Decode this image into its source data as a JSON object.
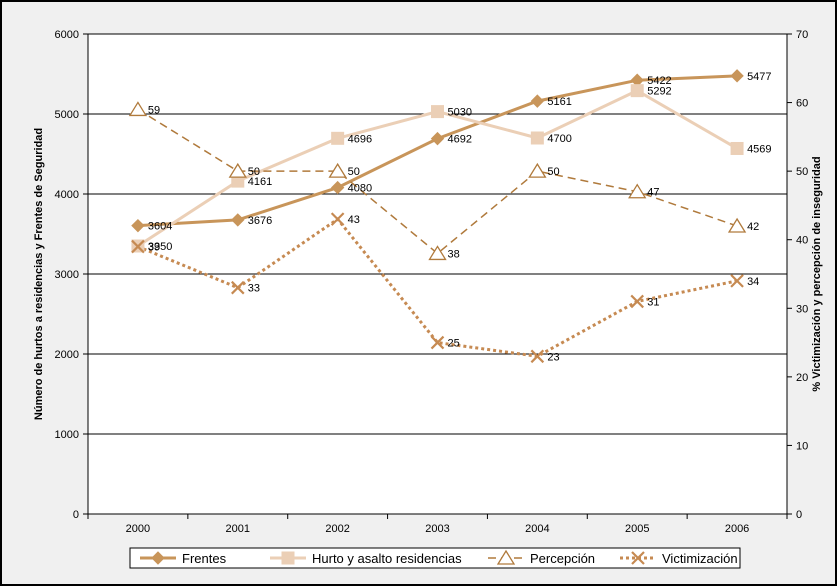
{
  "chart_data": {
    "type": "line",
    "categories": [
      "2000",
      "2001",
      "2002",
      "2003",
      "2004",
      "2005",
      "2006"
    ],
    "ylabel": "Número de hurtos a residencias y Frentes de Seguridad",
    "y2label": "% Victimización y percepción de inseguridad",
    "ylim": [
      0,
      6000
    ],
    "y2lim": [
      0,
      70
    ],
    "yticks": [
      "0",
      "1000",
      "2000",
      "3000",
      "4000",
      "5000",
      "6000"
    ],
    "y2ticks": [
      "0",
      "10",
      "20",
      "30",
      "40",
      "50",
      "60",
      "70"
    ],
    "grid": true,
    "legend_position": "bottom",
    "series": [
      {
        "name": "Frentes",
        "axis": "left",
        "values": [
          3604,
          3676,
          4080,
          4692,
          5161,
          5422,
          5477
        ],
        "labels": [
          "3604",
          "3676",
          "4080",
          "4692",
          "5161",
          "5422",
          "5477"
        ],
        "color": "#c8955a",
        "marker": "diamond",
        "dash": "solid"
      },
      {
        "name": "Hurto y asalto residencias",
        "axis": "left",
        "values": [
          3350,
          4161,
          4696,
          5030,
          4700,
          5292,
          4569
        ],
        "labels": [
          "3350",
          "4161",
          "4696",
          "5030",
          "4700",
          "5292",
          "4569"
        ],
        "color": "#ebcfb6",
        "marker": "square",
        "dash": "solid"
      },
      {
        "name": "Percepción",
        "axis": "right",
        "values": [
          59,
          50,
          50,
          38,
          50,
          47,
          42
        ],
        "labels": [
          "59",
          "50",
          "50",
          "38",
          "50",
          "47",
          "42"
        ],
        "color": "#b07a3c",
        "marker": "triangle",
        "dash": "dashed"
      },
      {
        "name": "Victimización",
        "axis": "right",
        "values": [
          39,
          33,
          43,
          25,
          23,
          31,
          34
        ],
        "labels": [
          "39",
          "33",
          "43",
          "25",
          "23",
          "31",
          "34"
        ],
        "color": "#c68a52",
        "marker": "x",
        "dash": "dotted"
      }
    ]
  }
}
